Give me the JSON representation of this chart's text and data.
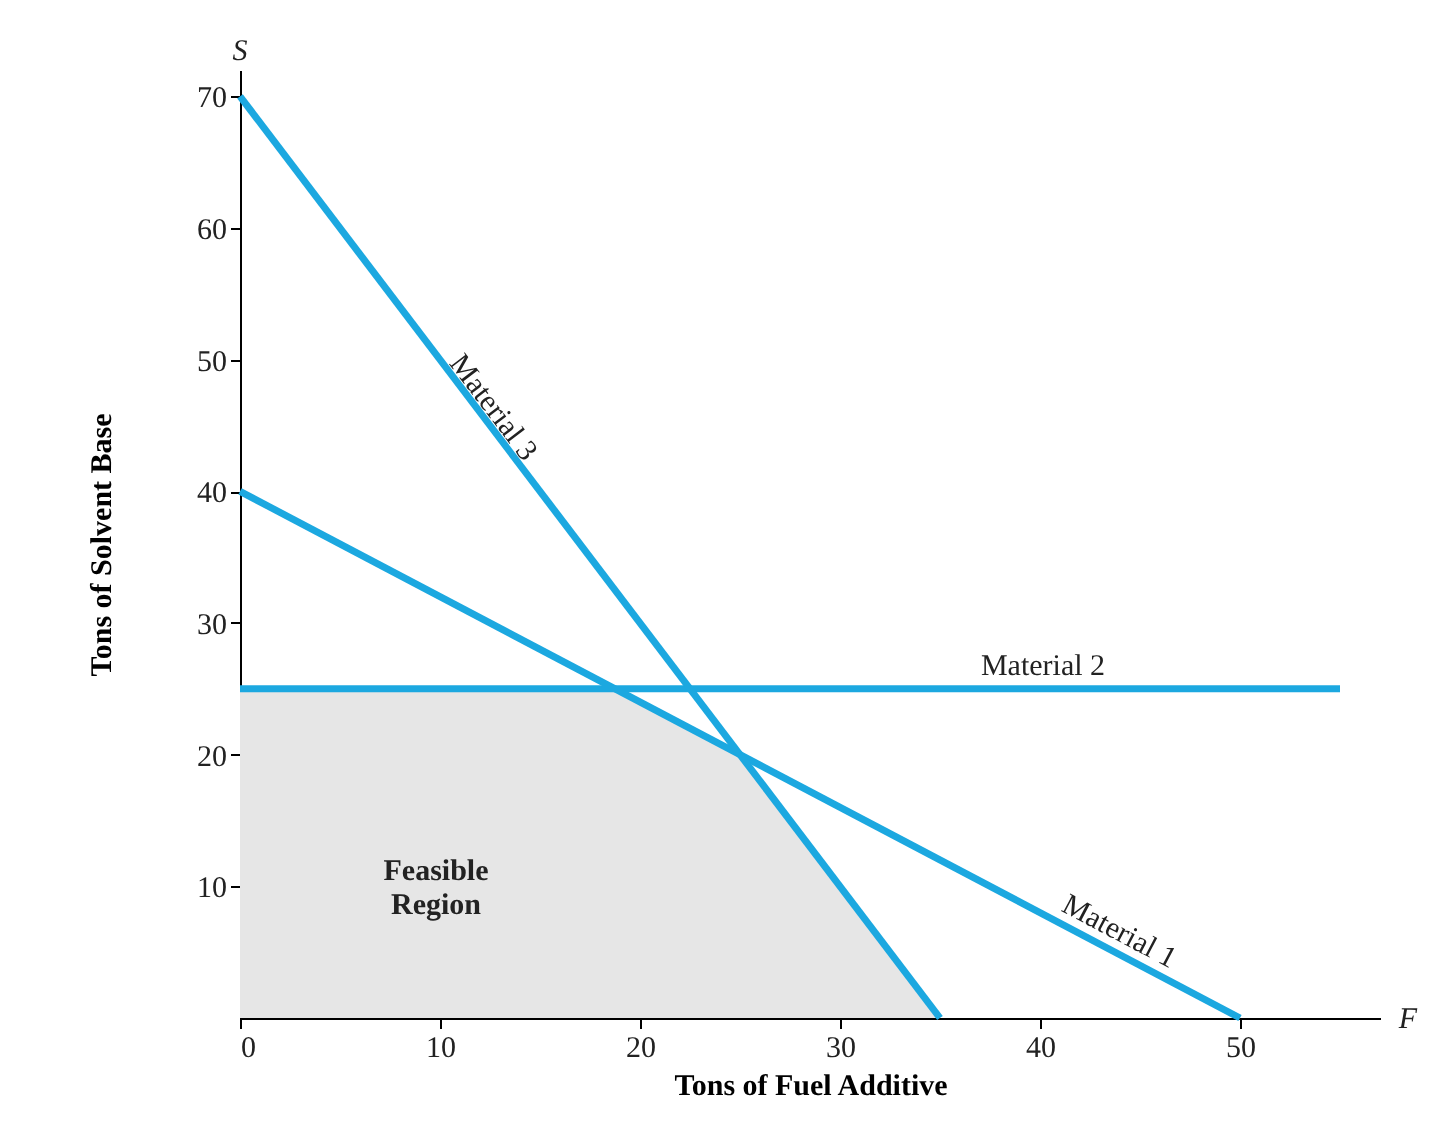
{
  "chart_data": {
    "type": "line",
    "xlabel": "Tons of Fuel Additive",
    "ylabel": "Tons of Solvent Base",
    "annotations": [
      "S",
      "F"
    ],
    "xlim": [
      0,
      57
    ],
    "xticks": [
      0,
      10,
      20,
      30,
      40,
      50
    ],
    "ylim": [
      0,
      72
    ],
    "yticks": [
      10,
      20,
      30,
      40,
      50,
      60,
      70
    ],
    "series": [
      {
        "name": "Feasible Region",
        "type": "area",
        "color": "#e6e6e6",
        "x": [
          0,
          18.75,
          25,
          35
        ],
        "values": [
          25,
          25,
          20,
          0
        ]
      },
      {
        "name": "Material 1",
        "color": "#1ca8e0",
        "x": [
          0,
          50
        ],
        "values": [
          40,
          0
        ]
      },
      {
        "name": "Material 2",
        "color": "#1ca8e0",
        "x": [
          0,
          55
        ],
        "values": [
          25,
          25
        ]
      },
      {
        "name": "Material 3",
        "color": "#1ca8e0",
        "x": [
          0,
          35
        ],
        "values": [
          70,
          0
        ]
      }
    ]
  }
}
